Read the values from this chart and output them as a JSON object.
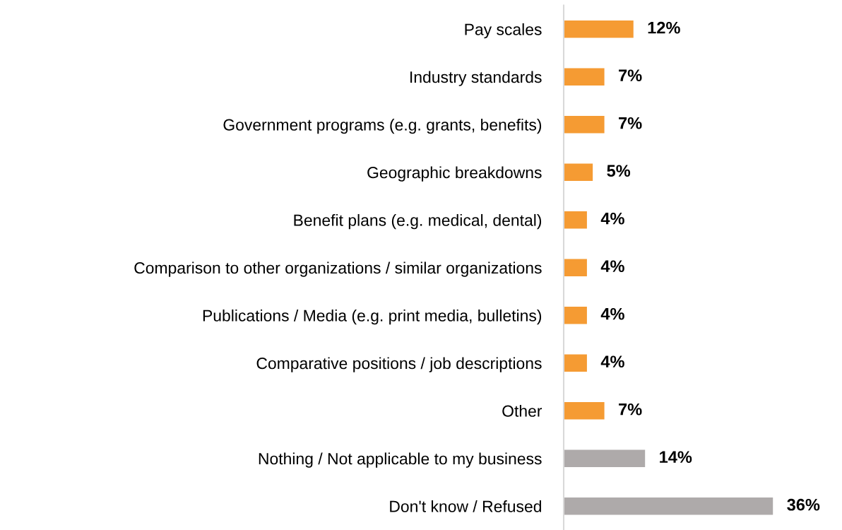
{
  "chart_data": {
    "type": "bar",
    "orientation": "horizontal",
    "data_labels": true,
    "grid": false,
    "legend": false,
    "categories": [
      "Pay scales",
      "Industry standards",
      "Government programs (e.g. grants, benefits)",
      "Geographic breakdowns",
      "Benefit plans (e.g. medical, dental)",
      "Comparison to other organizations / similar organizations",
      "Publications / Media (e.g. print media, bulletins)",
      "Comparative positions / job descriptions",
      "Other",
      "Nothing / Not applicable to my business",
      "Don't know / Refused"
    ],
    "values": [
      12,
      7,
      7,
      5,
      4,
      4,
      4,
      4,
      7,
      14,
      36
    ],
    "value_labels": [
      "12%",
      "7%",
      "7%",
      "5%",
      "4%",
      "4%",
      "4%",
      "4%",
      "7%",
      "14%",
      "36%"
    ],
    "colors": [
      "#f59b33",
      "#f59b33",
      "#f59b33",
      "#f59b33",
      "#f59b33",
      "#f59b33",
      "#f59b33",
      "#f59b33",
      "#f59b33",
      "#aeaaaa",
      "#aeaaaa"
    ]
  }
}
